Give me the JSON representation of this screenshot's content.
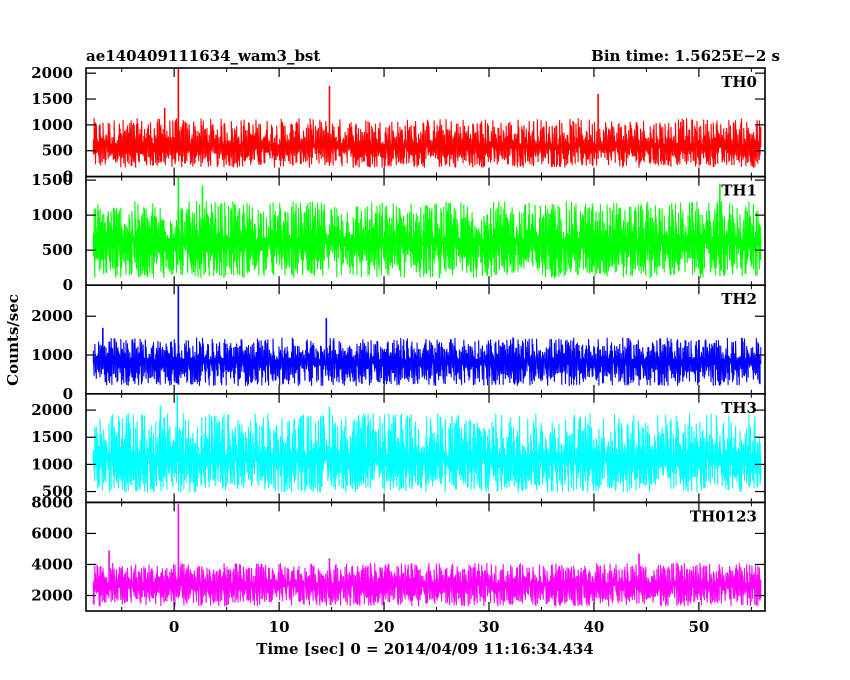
{
  "chart_data": {
    "type": "line",
    "title_left": "ae140409111634_wam3_bst",
    "title_right": "Bin time: 1.5625E−2 s",
    "xlabel": "Time [sec] 0 = 2014/04/09 11:16:34.434",
    "ylabel": "Counts/sec",
    "xlim": [
      -8.4,
      56.3
    ],
    "x_ticks": [
      0,
      10,
      20,
      30,
      40,
      50
    ],
    "x_tick_labels": [
      "0",
      "10",
      "20",
      "30",
      "40",
      "50"
    ],
    "data_range": [
      -7.7,
      55.9
    ],
    "bin_time": 0.015625,
    "panels": [
      {
        "name": "TH0",
        "color": "#ff0000",
        "ylim": [
          0,
          2100
        ],
        "y_ticks": [
          0,
          500,
          1000,
          1500,
          2000
        ],
        "y_tick_labels": [
          "0",
          "500",
          "1000",
          "1500",
          "2000"
        ],
        "baseline": 620,
        "noise_min": 170,
        "noise_max": 1130,
        "peaks": [
          {
            "x": 0.4,
            "y": 2100
          },
          {
            "x": 14.8,
            "y": 1750
          },
          {
            "x": -0.9,
            "y": 1330
          },
          {
            "x": 40.4,
            "y": 1600
          }
        ]
      },
      {
        "name": "TH1",
        "color": "#00ff00",
        "ylim": [
          0,
          1550
        ],
        "y_ticks": [
          0,
          500,
          1000,
          1500
        ],
        "y_tick_labels": [
          "0",
          "500",
          "1000",
          "1500"
        ],
        "baseline": 650,
        "noise_min": 100,
        "noise_max": 1200,
        "peaks": [
          {
            "x": 0.4,
            "y": 1550
          },
          {
            "x": 2.7,
            "y": 1420
          },
          {
            "x": 52.0,
            "y": 1450
          }
        ]
      },
      {
        "name": "TH2",
        "color": "#0000ff",
        "ylim": [
          0,
          2800
        ],
        "y_ticks": [
          0,
          1000,
          2000
        ],
        "y_tick_labels": [
          "0",
          "1000",
          "2000"
        ],
        "baseline": 880,
        "noise_min": 200,
        "noise_max": 1450,
        "peaks": [
          {
            "x": 0.4,
            "y": 2800
          },
          {
            "x": 14.5,
            "y": 1950
          },
          {
            "x": -6.8,
            "y": 1700
          }
        ]
      },
      {
        "name": "TH3",
        "color": "#00ffff",
        "ylim": [
          300,
          2300
        ],
        "y_ticks": [
          500,
          1000,
          1500,
          2000
        ],
        "y_tick_labels": [
          "500",
          "1000",
          "1500",
          "2000"
        ],
        "baseline": 1150,
        "noise_min": 480,
        "noise_max": 1950,
        "peaks": [
          {
            "x": 0.3,
            "y": 2300
          },
          {
            "x": -1.3,
            "y": 2080
          },
          {
            "x": 14.8,
            "y": 2060
          }
        ]
      },
      {
        "name": "TH0123",
        "color": "#ff00ff",
        "ylim": [
          1000,
          8000
        ],
        "y_ticks": [
          2000,
          4000,
          6000,
          8000
        ],
        "y_tick_labels": [
          "2000",
          "4000",
          "6000",
          "8000"
        ],
        "baseline": 2800,
        "noise_min": 1300,
        "noise_max": 4100,
        "peaks": [
          {
            "x": 0.4,
            "y": 7900
          },
          {
            "x": -6.2,
            "y": 4900
          },
          {
            "x": 44.3,
            "y": 4700
          },
          {
            "x": 14.8,
            "y": 4400
          }
        ]
      }
    ]
  }
}
